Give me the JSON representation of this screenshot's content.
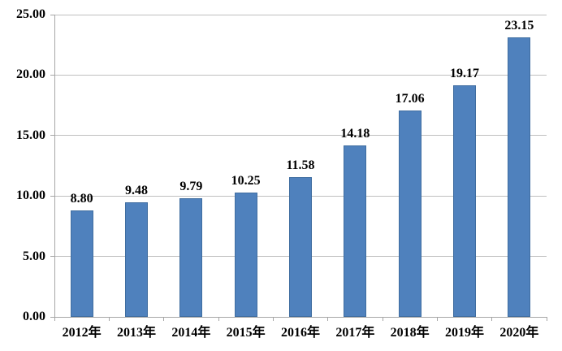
{
  "chart_data": {
    "type": "bar",
    "title": "",
    "xlabel": "",
    "ylabel": "",
    "categories": [
      "2012年",
      "2013年",
      "2014年",
      "2015年",
      "2016年",
      "2017年",
      "2018年",
      "2019年",
      "2020年"
    ],
    "values": [
      8.8,
      9.48,
      9.79,
      10.25,
      11.58,
      14.18,
      17.06,
      19.17,
      23.15
    ],
    "value_labels": [
      "8.80",
      "9.48",
      "9.79",
      "10.25",
      "11.58",
      "14.18",
      "17.06",
      "19.17",
      "23.15"
    ],
    "ylim": [
      0,
      25
    ],
    "y_tick_values": [
      0,
      5,
      10,
      15,
      20,
      25
    ],
    "y_tick_labels": [
      "0.00",
      "5.00",
      "10.00",
      "15.00",
      "20.00",
      "25.00"
    ],
    "grid": "horizontal",
    "legend": "none",
    "colors": {
      "bar_fill": "#4f81bd",
      "bar_border": "#3f6da0",
      "gridline": "#bfbfbf",
      "axis": "#a6a6a6",
      "text": "#000000",
      "background": "#ffffff"
    }
  }
}
